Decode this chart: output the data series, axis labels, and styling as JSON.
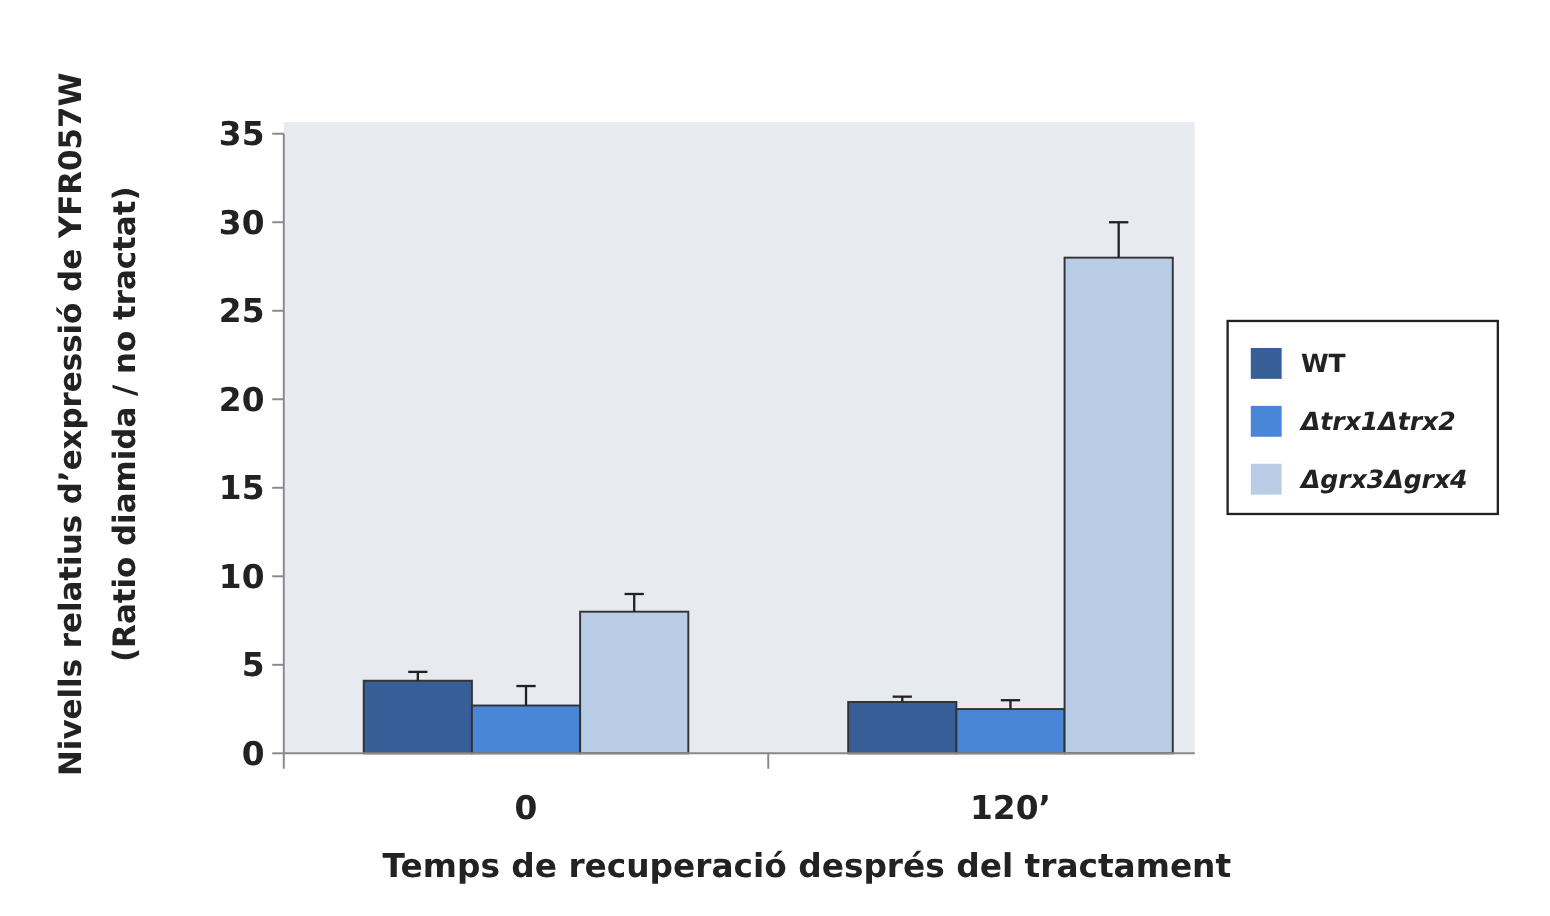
{
  "chart_data": {
    "type": "bar",
    "xlabel": "Temps de recuperació després del tractament",
    "ylabel": "Nivells relatius d’expressió de YFR057W\n(Ratio diamida / no tractat)",
    "categories": [
      "0",
      "120’"
    ],
    "series": [
      {
        "name": "WT",
        "color": "#375e97",
        "values": [
          4.1,
          2.9
        ],
        "errors": [
          0.5,
          0.3
        ]
      },
      {
        "name": "Δtrx1Δtrx2",
        "color": "#4a86d8",
        "values": [
          2.7,
          2.5
        ],
        "errors": [
          1.1,
          0.5
        ]
      },
      {
        "name": "Δgrx3Δgrx4",
        "color": "#b8cce6",
        "values": [
          8.0,
          28.0
        ],
        "errors": [
          1.0,
          2.0
        ]
      }
    ],
    "ylim": [
      0,
      35
    ],
    "yticks": [
      0,
      5,
      10,
      15,
      20,
      25,
      30,
      35
    ],
    "grid": false,
    "legend": "right"
  }
}
